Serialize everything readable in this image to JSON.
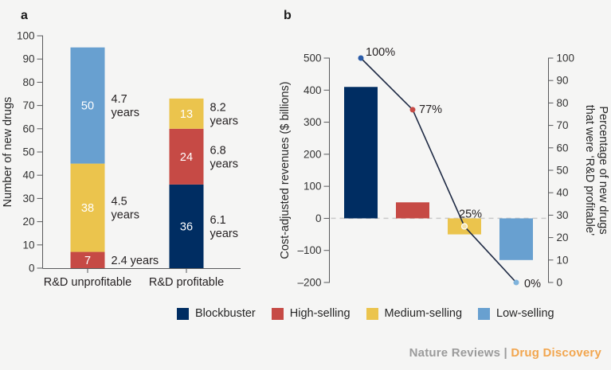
{
  "colors": {
    "navy": "#002d62",
    "red": "#c64a45",
    "yellow": "#ebc44d",
    "blue": "#68a0d0",
    "line": "#1e2a44",
    "axis": "#58595b",
    "text_dark": "#231f20",
    "tick_text": "#333333",
    "value_text": "#ffffff",
    "zero_dash": "#c9c9c9",
    "dot_navy": "#2b5ca8",
    "dot_yellow": "#f4e3ac",
    "dot_blue": "#7fb3dc",
    "footer_gray": "#9b9b9b",
    "footer_orange": "#f2a64f",
    "background": "#f5f5f4"
  },
  "chart_data": [
    {
      "id": "a",
      "type": "bar",
      "subtype": "stacked",
      "panel_label": "a",
      "ylabel": "Number of new drugs",
      "ylim": [
        0,
        100
      ],
      "yticks": [
        0,
        10,
        20,
        30,
        40,
        50,
        60,
        70,
        80,
        90,
        100
      ],
      "grid": false,
      "categories": [
        "R&D unprofitable",
        "R&D profitable"
      ],
      "stacks": [
        {
          "category": "R&D unprofitable",
          "total": 95,
          "segments": [
            {
              "name": "High-selling",
              "value": 7,
              "color": "red",
              "value_label": "7",
              "annotation_lines": [
                "2.4 years"
              ]
            },
            {
              "name": "Medium-selling",
              "value": 38,
              "color": "yellow",
              "value_label": "38",
              "annotation_lines": [
                "4.5",
                "years"
              ]
            },
            {
              "name": "Low-selling",
              "value": 50,
              "color": "blue",
              "value_label": "50",
              "annotation_lines": [
                "4.7",
                "years"
              ]
            }
          ]
        },
        {
          "category": "R&D profitable",
          "total": 73,
          "segments": [
            {
              "name": "Blockbuster",
              "value": 36,
              "color": "navy",
              "value_label": "36",
              "annotation_lines": [
                "6.1",
                "years"
              ]
            },
            {
              "name": "High-selling",
              "value": 24,
              "color": "red",
              "value_label": "24",
              "annotation_lines": [
                "6.8",
                "years"
              ]
            },
            {
              "name": "Medium-selling",
              "value": 13,
              "color": "yellow",
              "value_label": "13",
              "annotation_lines": [
                "8.2",
                "years"
              ]
            }
          ]
        }
      ]
    },
    {
      "id": "b",
      "type": "bar",
      "subtype": "bar-with-line",
      "panel_label": "b",
      "ylabel_left": "Cost-adjusted revenues ($ billions)",
      "ylabel_right_lines": [
        "Percentage of new drugs",
        "that were ‘R&D profitable’"
      ],
      "ylim_left": [
        -200,
        500
      ],
      "yticks_left": [
        -200,
        -100,
        0,
        100,
        200,
        300,
        400,
        500
      ],
      "ytick_labels_left": [
        "–200",
        "–100",
        "0",
        "100",
        "200",
        "300",
        "400",
        "500"
      ],
      "ylim_right": [
        0,
        100
      ],
      "yticks_right": [
        0,
        10,
        20,
        30,
        40,
        50,
        60,
        70,
        80,
        90,
        100
      ],
      "zero_line_dashed": true,
      "categories": [
        "Blockbuster",
        "High-selling",
        "Medium-selling",
        "Low-selling"
      ],
      "bars": [
        {
          "category": "Blockbuster",
          "value": 410,
          "color": "navy"
        },
        {
          "category": "High-selling",
          "value": 50,
          "color": "red"
        },
        {
          "category": "Medium-selling",
          "value": -50,
          "color": "yellow"
        },
        {
          "category": "Low-selling",
          "value": -130,
          "color": "blue"
        }
      ],
      "line": {
        "axis": "right",
        "points": [
          {
            "category": "Blockbuster",
            "value": 100,
            "label": "100%",
            "dot_color": "dot_navy"
          },
          {
            "category": "High-selling",
            "value": 77,
            "label": "77%",
            "dot_color": "red"
          },
          {
            "category": "Medium-selling",
            "value": 25,
            "label": "25%",
            "dot_color": "dot_yellow"
          },
          {
            "category": "Low-selling",
            "value": 0,
            "label": "0%",
            "dot_color": "dot_blue"
          }
        ]
      }
    }
  ],
  "legend": {
    "items": [
      {
        "label": "Blockbuster",
        "color": "navy"
      },
      {
        "label": "High-selling",
        "color": "red"
      },
      {
        "label": "Medium-selling",
        "color": "yellow"
      },
      {
        "label": "Low-selling",
        "color": "blue"
      }
    ]
  },
  "footer": {
    "journal": "Nature Reviews",
    "separator": " | ",
    "section": "Drug Discovery"
  }
}
